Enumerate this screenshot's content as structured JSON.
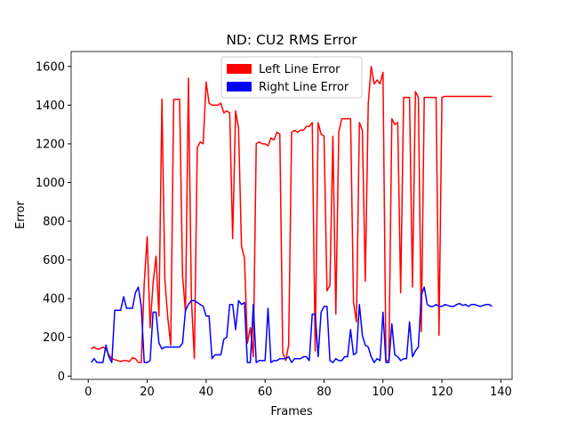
{
  "chart_data": {
    "type": "line",
    "title": "ND: CU2 RMS Error",
    "xlabel": "Frames",
    "ylabel": "Error",
    "x": [
      1,
      2,
      3,
      4,
      5,
      6,
      7,
      8,
      9,
      10,
      11,
      12,
      13,
      14,
      15,
      16,
      17,
      18,
      19,
      20,
      21,
      22,
      23,
      24,
      25,
      26,
      27,
      28,
      29,
      30,
      31,
      32,
      33,
      34,
      35,
      36,
      37,
      38,
      39,
      40,
      41,
      42,
      43,
      44,
      45,
      46,
      47,
      48,
      49,
      50,
      51,
      52,
      53,
      54,
      55,
      56,
      57,
      58,
      59,
      60,
      61,
      62,
      63,
      64,
      65,
      66,
      67,
      68,
      69,
      70,
      71,
      72,
      73,
      74,
      75,
      76,
      77,
      78,
      79,
      80,
      81,
      82,
      83,
      84,
      85,
      86,
      87,
      88,
      89,
      90,
      91,
      92,
      93,
      94,
      95,
      96,
      97,
      98,
      99,
      100,
      101,
      102,
      103,
      104,
      105,
      106,
      107,
      108,
      109,
      110,
      111,
      112,
      113,
      114,
      115,
      116,
      117,
      118,
      119,
      120,
      121,
      122,
      123,
      124,
      125,
      126,
      127,
      128,
      129,
      130,
      131,
      132,
      133,
      134,
      135,
      136,
      137
    ],
    "series": [
      {
        "name": "Left Line Error",
        "color": "#ff0000",
        "values": [
          140,
          150,
          140,
          140,
          150,
          140,
          110,
          90,
          85,
          80,
          75,
          80,
          80,
          75,
          95,
          90,
          70,
          70,
          480,
          720,
          250,
          480,
          620,
          310,
          1430,
          500,
          300,
          160,
          1430,
          1430,
          1430,
          520,
          330,
          1540,
          400,
          90,
          1180,
          1210,
          1200,
          1520,
          1410,
          1400,
          1400,
          1400,
          1410,
          1360,
          1370,
          1360,
          710,
          1370,
          1280,
          670,
          610,
          170,
          250,
          100,
          1200,
          1210,
          1200,
          1200,
          1190,
          1230,
          1220,
          1260,
          1250,
          120,
          80,
          160,
          1260,
          1270,
          1260,
          1270,
          1270,
          1290,
          1290,
          1310,
          130,
          1310,
          1250,
          1240,
          440,
          470,
          1240,
          320,
          1260,
          1330,
          1330,
          1330,
          1330,
          380,
          280,
          1310,
          1270,
          490,
          1410,
          1600,
          1510,
          1530,
          1510,
          1570,
          80,
          80,
          1330,
          1300,
          1310,
          430,
          1440,
          1440,
          1440,
          460,
          1470,
          1440,
          230,
          1440,
          1440,
          1440,
          1440,
          1440,
          210,
          1440,
          1445,
          1445,
          1445,
          1445,
          1445,
          1445,
          1445,
          1445,
          1445,
          1445,
          1445,
          1445,
          1445,
          1445,
          1445,
          1445,
          1445
        ]
      },
      {
        "name": "Right Line Error",
        "color": "#0000ff",
        "values": [
          70,
          90,
          70,
          70,
          70,
          160,
          100,
          70,
          340,
          340,
          340,
          410,
          350,
          350,
          350,
          430,
          460,
          360,
          70,
          70,
          80,
          330,
          330,
          170,
          140,
          150,
          150,
          150,
          150,
          150,
          150,
          170,
          340,
          370,
          390,
          390,
          380,
          370,
          360,
          310,
          310,
          90,
          110,
          110,
          110,
          190,
          200,
          370,
          370,
          240,
          390,
          370,
          380,
          70,
          70,
          370,
          70,
          80,
          80,
          80,
          350,
          70,
          80,
          80,
          90,
          90,
          90,
          100,
          70,
          90,
          90,
          90,
          100,
          100,
          80,
          320,
          320,
          100,
          330,
          360,
          360,
          80,
          70,
          90,
          80,
          80,
          100,
          100,
          240,
          110,
          120,
          370,
          210,
          160,
          150,
          100,
          70,
          90,
          80,
          330,
          70,
          70,
          270,
          110,
          100,
          80,
          90,
          90,
          280,
          100,
          130,
          150,
          420,
          460,
          370,
          360,
          360,
          370,
          360,
          360,
          370,
          365,
          360,
          360,
          370,
          375,
          365,
          370,
          360,
          370,
          370,
          365,
          360,
          365,
          370,
          370,
          360
        ]
      }
    ],
    "xlim": [
      -5.8,
      143.8
    ],
    "xticks": [
      0,
      20,
      40,
      60,
      80,
      100,
      120,
      140
    ],
    "ylim": [
      -17,
      1677
    ],
    "yticks": [
      0,
      200,
      400,
      600,
      800,
      1000,
      1200,
      1400,
      1600
    ],
    "legend": "upper center"
  }
}
